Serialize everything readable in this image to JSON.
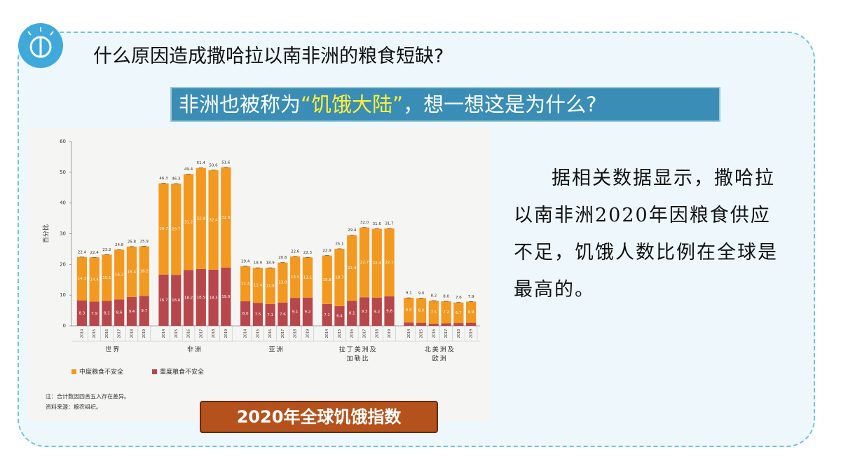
{
  "title": "什么原因造成撒哈拉以南非洲的粮食短缺?",
  "banner": {
    "before": "非洲也被称为",
    "highlight": "“饥饿大陆”",
    "after": "，想一想这是为什么?"
  },
  "paragraph": "据相关数据显示，撒哈拉以南非洲2020年因粮食供应不足，饥饿人数比例在全球是最高的。",
  "caption": "2020年全球饥饿指数",
  "chart_data": {
    "type": "bar",
    "stacked": true,
    "y_label": "百分比",
    "ylim": [
      0,
      60
    ],
    "yticks": [
      0,
      10,
      20,
      30,
      40,
      50,
      60
    ],
    "groups": [
      [
        "世界"
      ],
      [
        "非洲"
      ],
      [
        "亚洲"
      ],
      [
        "拉丁美洲及",
        "加勒比"
      ],
      [
        "北美洲及",
        "欧洲"
      ]
    ],
    "categories": [
      "2014",
      "2015",
      "2016",
      "2017",
      "2018",
      "2019",
      "2014",
      "2015",
      "2016",
      "2017",
      "2018",
      "2019",
      "2014",
      "2015",
      "2016",
      "2017",
      "2018",
      "2019",
      "2014",
      "2015",
      "2016",
      "2017",
      "2018",
      "2019",
      "2014",
      "2015",
      "2016",
      "2017",
      "2018",
      "2019"
    ],
    "series": [
      {
        "name": "重度粮食不安全",
        "color": "#b8474b",
        "values": [
          8.3,
          7.9,
          8.1,
          8.6,
          9.4,
          9.7,
          16.7,
          16.6,
          18.2,
          18.5,
          18.3,
          19.0,
          8.0,
          7.5,
          7.1,
          7.6,
          9.1,
          9.2,
          7.1,
          6.4,
          8.1,
          9.3,
          9.2,
          9.6,
          1.1,
          1.0,
          0.7,
          0.8,
          0.9,
          1.0
        ],
        "value_labels": [
          "8.3",
          "7.9",
          "8.1",
          "8.6",
          "9.4",
          "9.7",
          "16.7",
          "16.6",
          "18.2",
          "18.5",
          "18.3",
          "19.0",
          "8.0",
          "7.5",
          "7.1",
          "7.6",
          "9.1",
          "9.2",
          "7.1",
          "6.4",
          "8.1",
          "9.3",
          "9.2",
          "9.6",
          null,
          null,
          null,
          null,
          null,
          null
        ]
      },
      {
        "name": "中度粮食不安全",
        "color": "#f3991f",
        "values": [
          14.1,
          14.4,
          15.1,
          16.2,
          16.4,
          16.2,
          29.7,
          29.7,
          31.2,
          32.9,
          32.4,
          32.6,
          11.4,
          11.4,
          11.8,
          13.0,
          13.5,
          13.1,
          15.8,
          18.7,
          21.4,
          22.7,
          22.4,
          22.1,
          8.0,
          8.0,
          7.5,
          7.2,
          6.7,
          6.9
        ],
        "value_labels": [
          "14.1",
          "14.4",
          "15.1",
          "16.2",
          "16.4",
          "16.2",
          "29.7",
          "29.7",
          "31.2",
          "32.9",
          "32.4",
          "32.6",
          "11.4",
          "11.4",
          "11.8",
          "13.0",
          "13.5",
          "13.1",
          "15.8",
          "18.7",
          "21.4",
          "22.7",
          "22.4",
          "22.1",
          "8.0",
          "8.0",
          "7.5",
          "7.2",
          "6.7",
          "6.9"
        ]
      }
    ],
    "totals": [
      22.4,
      22.4,
      23.2,
      24.8,
      25.8,
      25.9,
      46.3,
      46.3,
      49.4,
      51.4,
      50.6,
      51.6,
      19.4,
      18.9,
      18.9,
      20.6,
      22.6,
      22.3,
      22.9,
      25.1,
      29.4,
      32.0,
      31.6,
      31.7,
      9.1,
      9.0,
      8.2,
      8.0,
      7.6,
      7.9
    ],
    "total_labels": [
      "22.4",
      "22.4",
      "23.2",
      "24.8",
      "25.8",
      "25.9",
      "46.3",
      "46.3",
      "49.4",
      "51.4",
      "50.6",
      "51.6",
      "19.4",
      "18.9",
      "18.9",
      "20.6",
      "22.6",
      "22.3",
      "22.9",
      "25.1",
      "29.4",
      "32.0",
      "31.6",
      "31.7",
      "9.1",
      "9.0",
      "8.2",
      "8.0",
      "7.6",
      "7.9"
    ],
    "legend_order": [
      1,
      0
    ],
    "notes": [
      "注：合计数因四舍五入存在差异。",
      "资料来源：粮农组织。"
    ]
  }
}
